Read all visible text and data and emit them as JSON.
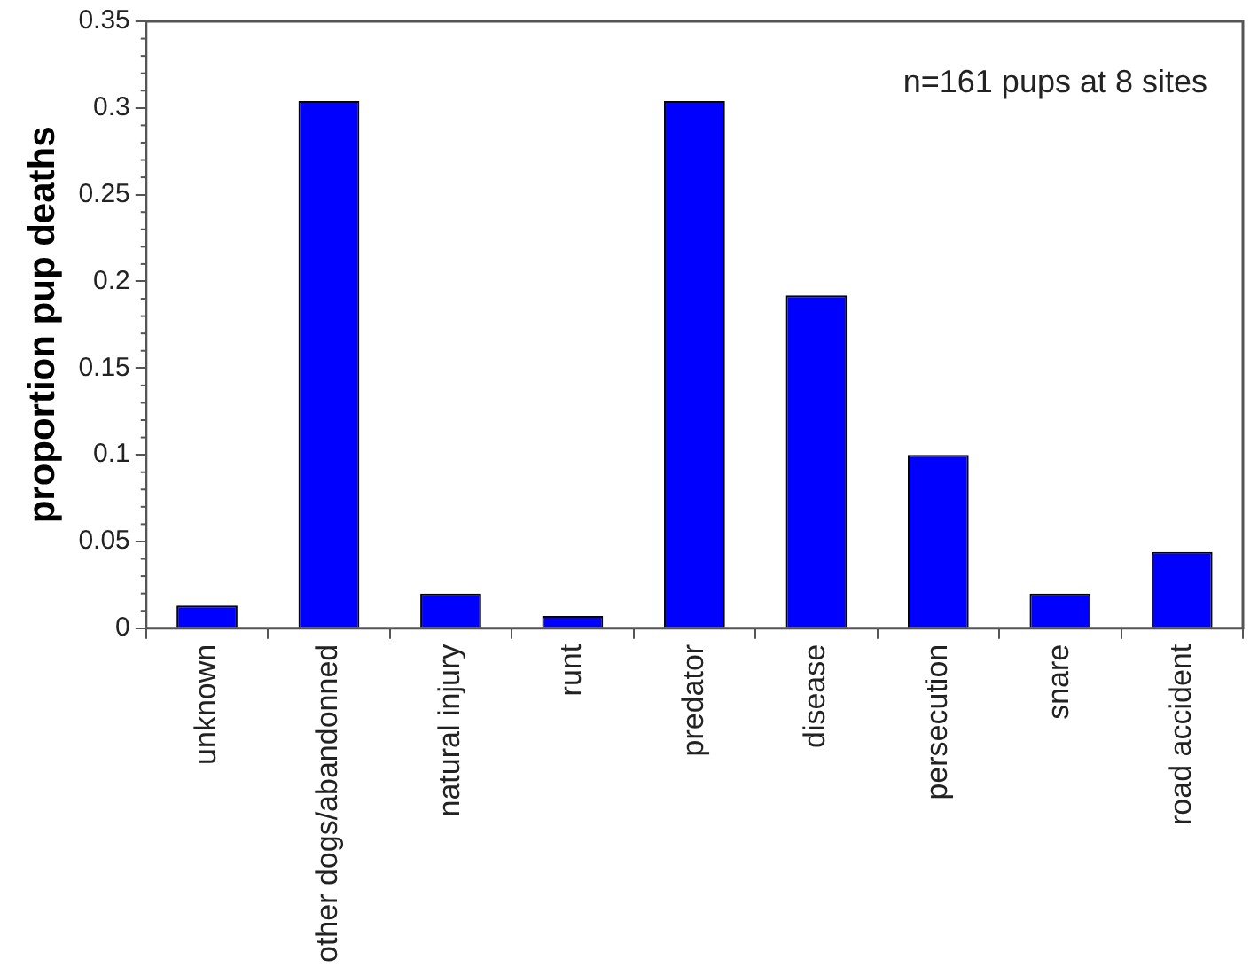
{
  "chart_data": {
    "type": "bar",
    "ylabel": "proportion pup deaths",
    "categories": [
      "unknown",
      "other dogs/abandonned",
      "natural injury",
      "runt",
      "predator",
      "disease",
      "persecution",
      "snare",
      "road accident"
    ],
    "values": [
      0.013,
      0.304,
      0.02,
      0.007,
      0.304,
      0.192,
      0.1,
      0.02,
      0.044
    ],
    "color": "#0000ff",
    "ylim": [
      0,
      0.35
    ],
    "yticks": [
      0,
      0.05,
      0.1,
      0.15,
      0.2,
      0.25,
      0.3,
      0.35
    ],
    "annotations": [
      "n=161 pups at 8 sites"
    ],
    "grid": false,
    "legend": false
  }
}
